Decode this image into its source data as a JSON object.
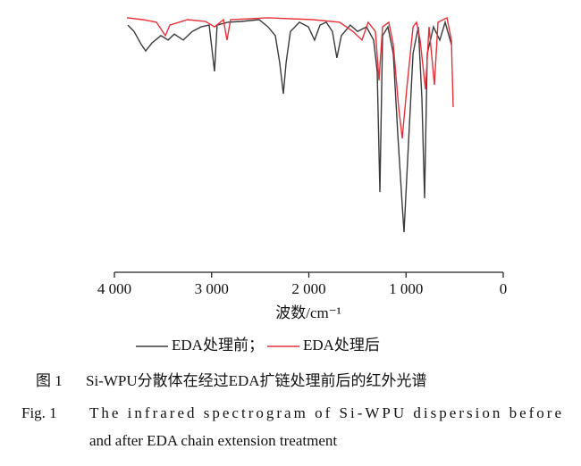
{
  "chart_data": {
    "type": "line",
    "xlabel": "波数/cm⁻¹",
    "xlim": [
      4000,
      0
    ],
    "xticks": [
      {
        "value": 4000,
        "label": "4 000"
      },
      {
        "value": 3000,
        "label": "3 000"
      },
      {
        "value": 2000,
        "label": "2 000"
      },
      {
        "value": 1000,
        "label": "1 000"
      },
      0
    ],
    "ylim": [
      0,
      100
    ],
    "grid": false,
    "legend_separator": "；",
    "series": [
      {
        "name": "EDA处理前",
        "color": "#3a3a3a",
        "x": [
          3862,
          3798,
          3724,
          3678,
          3614,
          3522,
          3448,
          3384,
          3292,
          3200,
          3108,
          3025,
          2970,
          2943,
          2833,
          2695,
          2511,
          2420,
          2345,
          2300,
          2262,
          2234,
          2189,
          2097,
          2005,
          1941,
          1885,
          1821,
          1757,
          1711,
          1665,
          1573,
          1499,
          1407,
          1333,
          1297,
          1269,
          1241,
          1186,
          1131,
          1085,
          1039,
          1021,
          984,
          928,
          874,
          837,
          809,
          782,
          717,
          653,
          598,
          533
        ],
        "values": [
          95.5,
          93,
          88,
          85.5,
          88.6,
          91.4,
          89.7,
          92,
          89.7,
          93,
          94.8,
          95.5,
          77.6,
          95.5,
          96.6,
          96.9,
          97.6,
          94.8,
          91.4,
          81,
          69,
          81,
          93,
          96.6,
          94.8,
          89.7,
          95.5,
          96.6,
          93,
          82.8,
          91.4,
          95.5,
          93,
          94.8,
          89.7,
          77.6,
          31,
          91.4,
          94.8,
          84.5,
          53.4,
          25.9,
          15.5,
          43,
          84.5,
          94.8,
          67.2,
          28.6,
          84.5,
          94.8,
          89.7,
          96.6,
          88
        ]
      },
      {
        "name": "EDA处理后",
        "color": "#e8303a",
        "x": [
          3871,
          3706,
          3568,
          3476,
          3430,
          3246,
          3062,
          2970,
          2878,
          2842,
          2805,
          2420,
          1960,
          1684,
          1546,
          1453,
          1389,
          1315,
          1278,
          1241,
          1177,
          1131,
          1076,
          1039,
          993,
          928,
          892,
          855,
          800,
          763,
          708,
          671,
          579,
          533,
          515
        ],
        "values": [
          98.3,
          97.6,
          96.6,
          91.4,
          95.5,
          97.6,
          96.9,
          94.8,
          97.6,
          89.7,
          97.6,
          98.3,
          97.6,
          96.6,
          93,
          89.7,
          96.6,
          93,
          74.1,
          94.8,
          96.6,
          87.9,
          63.8,
          51.7,
          70.7,
          94.8,
          96.6,
          89.7,
          70.7,
          94.8,
          72.4,
          96.6,
          98.3,
          89.7,
          63.8
        ]
      }
    ]
  },
  "caption": {
    "figure_label_cn": "图 1",
    "text_cn": "Si-WPU分散体在经过EDA扩链处理前后的红外光谱",
    "figure_label_en": "Fig. 1",
    "text_en": [
      "The infrared spectrogram of Si-WPU dispersion before",
      "and after EDA chain extension treatment"
    ]
  }
}
